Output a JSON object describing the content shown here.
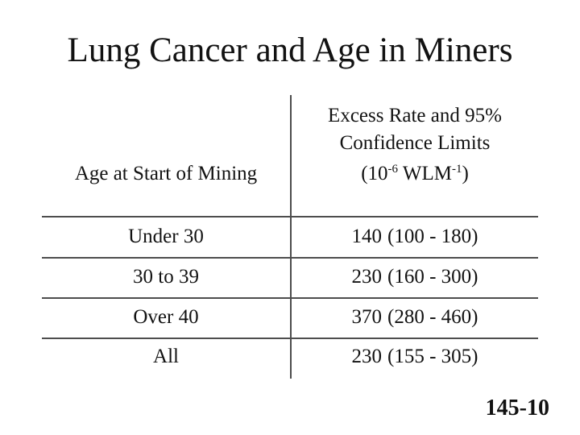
{
  "slide": {
    "title": "Lung Cancer and Age in Miners",
    "slide_number": "145-10"
  },
  "table": {
    "left_header": "Age at Start of Mining",
    "right_header": {
      "line1": "Excess Rate and 95%",
      "line2": "Confidence Limits",
      "unit_open": "(10",
      "unit_sup1": "-6",
      "unit_mid": " WLM",
      "unit_sup2": "-1",
      "unit_close": ")"
    },
    "rows": [
      {
        "age": "Under 30",
        "value": "140",
        "ci": "(100 - 180)"
      },
      {
        "age": "30 to 39",
        "value": "230",
        "ci": "(160 - 300)"
      },
      {
        "age": "Over 40",
        "value": "370",
        "ci": "(280 - 460)"
      },
      {
        "age": "All",
        "value": "230",
        "ci": "(155 - 305)"
      }
    ]
  },
  "colors": {
    "background": "#ffffff",
    "text": "#121212",
    "rule_line": "#4d4d4d"
  }
}
